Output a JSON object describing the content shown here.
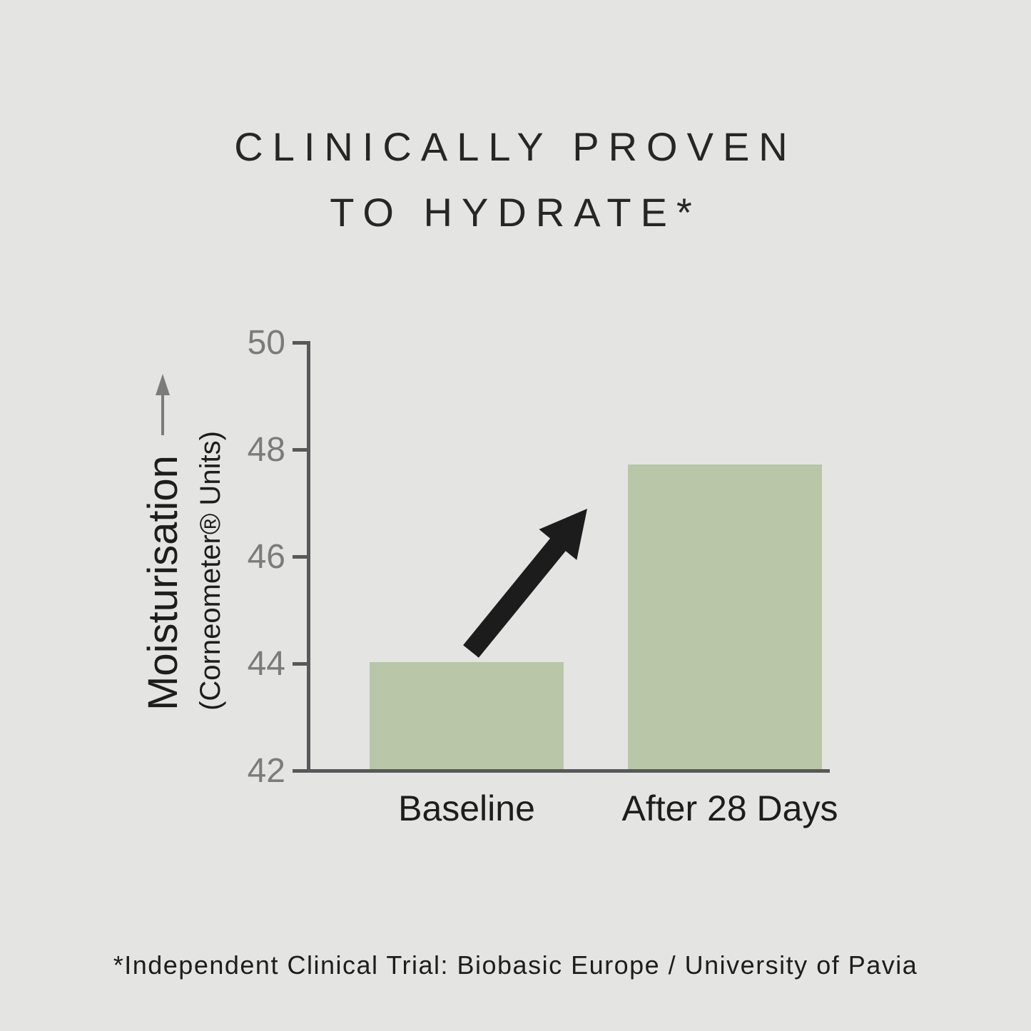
{
  "title": {
    "line1": "CLINICALLY PROVEN",
    "line2": "TO HYDRATE*"
  },
  "y_axis": {
    "label": "Moisturisation",
    "sublabel": "(Corneometer® Units)",
    "direction_arrow": "up",
    "tick_labels": [
      "50",
      "48",
      "46",
      "44",
      "42"
    ]
  },
  "x_axis": {
    "labels": [
      "Baseline",
      "After 28 Days"
    ]
  },
  "footnote": "*Independent Clinical Trial: Biobasic Europe / University of Pavia",
  "colors": {
    "background": "#e4e4e3",
    "bar": "#b9c6a7",
    "axis": "#58585a",
    "tick_label": "#7b7b7b",
    "title_text": "#262626",
    "body_text": "#1d1d1d",
    "increase_arrow": "#1c1c1c",
    "axis_arrow": "#7c7c7c"
  },
  "chart_data": {
    "type": "bar",
    "categories": [
      "Baseline",
      "After 28 Days"
    ],
    "values": [
      44,
      47.7
    ],
    "title": "CLINICALLY PROVEN TO HYDRATE*",
    "xlabel": "",
    "ylabel": "Moisturisation (Corneometer® Units)",
    "ylim": [
      42,
      50
    ],
    "yticks": [
      42,
      44,
      46,
      48,
      50
    ],
    "grid": false,
    "legend_position": "none",
    "bar_color": "#b9c6a7",
    "annotations": [
      "thick black diagonal arrow pointing up-right between the two bars, indicating increase"
    ],
    "footnote": "*Independent Clinical Trial: Biobasic Europe / University of Pavia"
  }
}
